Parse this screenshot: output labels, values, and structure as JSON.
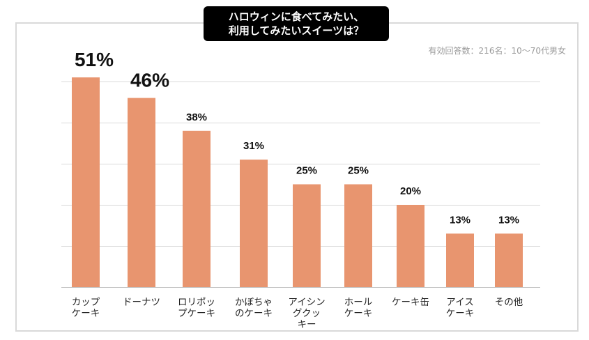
{
  "chart_data": {
    "type": "bar",
    "title_lines": [
      "ハロウィンに食べてみたい、",
      "利用してみたいスイーツは？"
    ],
    "note": "有効回答数：216名：10〜70代男女",
    "categories": [
      [
        "カップ",
        "ケーキ"
      ],
      [
        "ドーナツ"
      ],
      [
        "ロリポッ",
        "プケーキ"
      ],
      [
        "かぼちゃ",
        "のケーキ"
      ],
      [
        "アイシン",
        "グクッ",
        "キー"
      ],
      [
        "ホール",
        "ケーキ"
      ],
      [
        "ケーキ缶"
      ],
      [
        "アイス",
        "ケーキ"
      ],
      [
        "その他"
      ]
    ],
    "values": [
      51,
      46,
      38,
      31,
      25,
      25,
      20,
      13,
      13
    ],
    "value_labels": [
      "51%",
      "46%",
      "38%",
      "31%",
      "25%",
      "25%",
      "20%",
      "13%",
      "13%"
    ],
    "ylim": [
      0,
      55
    ],
    "grid": true,
    "bar_color": "#e8956f",
    "grid_color": "#d9d9d9",
    "axis_color": "#bfbfbf"
  }
}
